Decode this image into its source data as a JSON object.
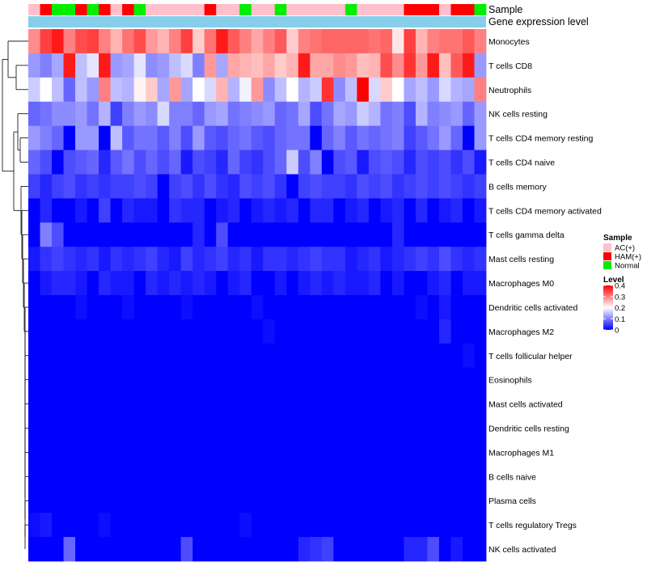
{
  "chart_data": {
    "type": "heatmap",
    "annotations": {
      "sample_label": "Sample",
      "expression_label": "Gene expression level"
    },
    "rows": [
      "Monocytes",
      "T cells CD8",
      "Neutrophils",
      "NK cells resting",
      "T cells CD4 memory resting",
      "T cells CD4 naive",
      "B cells memory",
      "T cells CD4 memory activated",
      "T cells gamma delta",
      "Mast cells resting",
      "Macrophages M0",
      "Dendritic cells activated",
      "Macrophages M2",
      "T cells follicular helper",
      "Eosinophils",
      "Mast cells activated",
      "Dendritic cells resting",
      "Macrophages M1",
      "B cells naive",
      "Plasma cells",
      "T cells regulatory  Tregs",
      "NK cells activated"
    ],
    "sample_groups": [
      "AC(+)",
      "HAM(+)",
      "Normal",
      "Normal",
      "HAM(+)",
      "Normal",
      "HAM(+)",
      "AC(+)",
      "HAM(+)",
      "Normal",
      "AC(+)",
      "AC(+)",
      "AC(+)",
      "AC(+)",
      "AC(+)",
      "HAM(+)",
      "AC(+)",
      "AC(+)",
      "Normal",
      "AC(+)",
      "AC(+)",
      "Normal",
      "AC(+)",
      "AC(+)",
      "AC(+)",
      "AC(+)",
      "AC(+)",
      "Normal",
      "AC(+)",
      "AC(+)",
      "AC(+)",
      "AC(+)",
      "HAM(+)",
      "HAM(+)",
      "HAM(+)",
      "AC(+)",
      "HAM(+)",
      "HAM(+)",
      "Normal"
    ],
    "values": [
      [
        0.29,
        0.35,
        0.38,
        0.3,
        0.34,
        0.35,
        0.3,
        0.26,
        0.31,
        0.34,
        0.28,
        0.26,
        0.3,
        0.35,
        0.24,
        0.31,
        0.38,
        0.33,
        0.3,
        0.27,
        0.3,
        0.33,
        0.24,
        0.3,
        0.31,
        0.32,
        0.32,
        0.32,
        0.32,
        0.31,
        0.32,
        0.22,
        0.35,
        0.26,
        0.3,
        0.31,
        0.31,
        0.33,
        0.3
      ],
      [
        0.12,
        0.1,
        0.13,
        0.38,
        0.15,
        0.18,
        0.38,
        0.12,
        0.13,
        0.18,
        0.11,
        0.12,
        0.15,
        0.17,
        0.1,
        0.28,
        0.13,
        0.27,
        0.26,
        0.25,
        0.27,
        0.24,
        0.26,
        0.38,
        0.27,
        0.27,
        0.29,
        0.28,
        0.25,
        0.26,
        0.34,
        0.29,
        0.36,
        0.28,
        0.38,
        0.25,
        0.33,
        0.38,
        0.12
      ],
      [
        0.16,
        0.2,
        0.15,
        0.08,
        0.15,
        0.12,
        0.3,
        0.15,
        0.14,
        0.21,
        0.24,
        0.13,
        0.28,
        0.13,
        0.2,
        0.17,
        0.26,
        0.14,
        0.19,
        0.28,
        0.11,
        0.15,
        0.2,
        0.14,
        0.16,
        0.36,
        0.11,
        0.15,
        0.4,
        0.17,
        0.24,
        0.2,
        0.13,
        0.15,
        0.12,
        0.17,
        0.14,
        0.13,
        0.3
      ],
      [
        0.08,
        0.09,
        0.11,
        0.11,
        0.12,
        0.09,
        0.14,
        0.05,
        0.1,
        0.12,
        0.11,
        0.17,
        0.1,
        0.1,
        0.08,
        0.12,
        0.13,
        0.09,
        0.1,
        0.11,
        0.12,
        0.08,
        0.09,
        0.13,
        0.06,
        0.09,
        0.13,
        0.12,
        0.16,
        0.14,
        0.09,
        0.1,
        0.06,
        0.14,
        0.1,
        0.11,
        0.12,
        0.08,
        0.12
      ],
      [
        0.12,
        0.1,
        0.08,
        0.0,
        0.12,
        0.12,
        0.0,
        0.15,
        0.07,
        0.09,
        0.09,
        0.07,
        0.1,
        0.06,
        0.12,
        0.07,
        0.06,
        0.08,
        0.09,
        0.07,
        0.06,
        0.08,
        0.09,
        0.09,
        0.0,
        0.08,
        0.1,
        0.07,
        0.09,
        0.08,
        0.09,
        0.1,
        0.05,
        0.07,
        0.09,
        0.12,
        0.08,
        0.0,
        0.12
      ],
      [
        0.08,
        0.06,
        0.0,
        0.06,
        0.07,
        0.08,
        0.03,
        0.07,
        0.09,
        0.06,
        0.08,
        0.06,
        0.08,
        0.02,
        0.06,
        0.05,
        0.03,
        0.08,
        0.05,
        0.04,
        0.06,
        0.08,
        0.16,
        0.06,
        0.1,
        0.0,
        0.06,
        0.07,
        0.02,
        0.06,
        0.07,
        0.06,
        0.03,
        0.06,
        0.05,
        0.06,
        0.04,
        0.06,
        0.02
      ],
      [
        0.05,
        0.03,
        0.05,
        0.06,
        0.04,
        0.05,
        0.04,
        0.05,
        0.05,
        0.06,
        0.05,
        0.0,
        0.05,
        0.06,
        0.04,
        0.06,
        0.04,
        0.03,
        0.06,
        0.05,
        0.06,
        0.04,
        0.0,
        0.05,
        0.06,
        0.05,
        0.05,
        0.04,
        0.06,
        0.05,
        0.06,
        0.04,
        0.05,
        0.06,
        0.05,
        0.06,
        0.05,
        0.04,
        0.05
      ],
      [
        0.0,
        0.03,
        0.0,
        0.0,
        0.02,
        0.0,
        0.05,
        0.0,
        0.03,
        0.02,
        0.02,
        0.0,
        0.04,
        0.03,
        0.03,
        0.0,
        0.02,
        0.03,
        0.0,
        0.02,
        0.03,
        0.02,
        0.03,
        0.0,
        0.03,
        0.03,
        0.0,
        0.02,
        0.03,
        0.0,
        0.02,
        0.03,
        0.0,
        0.03,
        0.0,
        0.02,
        0.03,
        0.0,
        0.02
      ],
      [
        0.0,
        0.1,
        0.06,
        0.0,
        0.0,
        0.0,
        0.0,
        0.0,
        0.0,
        0.0,
        0.0,
        0.0,
        0.0,
        0.0,
        0.03,
        0.0,
        0.06,
        0.0,
        0.0,
        0.0,
        0.0,
        0.0,
        0.0,
        0.0,
        0.0,
        0.0,
        0.0,
        0.0,
        0.0,
        0.0,
        0.0,
        0.03,
        0.0,
        0.0,
        0.0,
        0.0,
        0.0,
        0.0,
        0.0
      ],
      [
        0.02,
        0.04,
        0.05,
        0.04,
        0.03,
        0.04,
        0.02,
        0.04,
        0.03,
        0.04,
        0.05,
        0.03,
        0.02,
        0.05,
        0.03,
        0.04,
        0.05,
        0.03,
        0.04,
        0.02,
        0.04,
        0.04,
        0.03,
        0.04,
        0.05,
        0.04,
        0.04,
        0.02,
        0.03,
        0.04,
        0.02,
        0.03,
        0.04,
        0.05,
        0.04,
        0.06,
        0.04,
        0.03,
        0.04
      ],
      [
        0.0,
        0.02,
        0.03,
        0.03,
        0.02,
        0.0,
        0.03,
        0.02,
        0.02,
        0.0,
        0.03,
        0.02,
        0.03,
        0.02,
        0.03,
        0.02,
        0.0,
        0.02,
        0.03,
        0.0,
        0.0,
        0.02,
        0.0,
        0.02,
        0.03,
        0.02,
        0.03,
        0.02,
        0.02,
        0.03,
        0.0,
        0.02,
        0.0,
        0.0,
        0.02,
        0.03,
        0.0,
        0.02,
        0.02
      ],
      [
        0.0,
        0.0,
        0.0,
        0.0,
        0.01,
        0.0,
        0.0,
        0.0,
        0.01,
        0.0,
        0.0,
        0.0,
        0.0,
        0.01,
        0.0,
        0.0,
        0.0,
        0.0,
        0.0,
        0.01,
        0.0,
        0.0,
        0.0,
        0.0,
        0.0,
        0.0,
        0.0,
        0.0,
        0.0,
        0.0,
        0.0,
        0.0,
        0.0,
        0.01,
        0.0,
        0.02,
        0.0,
        0.0,
        0.0
      ],
      [
        0.0,
        0.0,
        0.0,
        0.0,
        0.0,
        0.0,
        0.0,
        0.0,
        0.0,
        0.0,
        0.0,
        0.0,
        0.0,
        0.0,
        0.0,
        0.0,
        0.0,
        0.0,
        0.0,
        0.0,
        0.01,
        0.0,
        0.0,
        0.0,
        0.0,
        0.0,
        0.0,
        0.0,
        0.0,
        0.0,
        0.0,
        0.0,
        0.0,
        0.0,
        0.0,
        0.03,
        0.0,
        0.0,
        0.0
      ],
      [
        0.0,
        0.0,
        0.0,
        0.0,
        0.0,
        0.0,
        0.0,
        0.0,
        0.0,
        0.0,
        0.0,
        0.0,
        0.0,
        0.0,
        0.0,
        0.0,
        0.0,
        0.0,
        0.0,
        0.0,
        0.0,
        0.0,
        0.0,
        0.0,
        0.0,
        0.0,
        0.0,
        0.0,
        0.0,
        0.0,
        0.0,
        0.0,
        0.0,
        0.0,
        0.0,
        0.0,
        0.0,
        0.01,
        0.0
      ],
      [
        0.0,
        0.0,
        0.0,
        0.0,
        0.0,
        0.0,
        0.0,
        0.0,
        0.0,
        0.0,
        0.0,
        0.0,
        0.0,
        0.0,
        0.0,
        0.0,
        0.0,
        0.0,
        0.0,
        0.0,
        0.0,
        0.0,
        0.0,
        0.0,
        0.0,
        0.0,
        0.0,
        0.0,
        0.0,
        0.0,
        0.0,
        0.0,
        0.0,
        0.0,
        0.0,
        0.0,
        0.0,
        0.0,
        0.0
      ],
      [
        0.0,
        0.0,
        0.0,
        0.0,
        0.0,
        0.0,
        0.0,
        0.0,
        0.0,
        0.0,
        0.0,
        0.0,
        0.0,
        0.0,
        0.0,
        0.0,
        0.0,
        0.0,
        0.0,
        0.0,
        0.0,
        0.0,
        0.0,
        0.0,
        0.0,
        0.0,
        0.0,
        0.0,
        0.0,
        0.0,
        0.0,
        0.0,
        0.0,
        0.0,
        0.0,
        0.0,
        0.0,
        0.0,
        0.0
      ],
      [
        0.0,
        0.0,
        0.0,
        0.0,
        0.0,
        0.0,
        0.0,
        0.0,
        0.0,
        0.0,
        0.0,
        0.0,
        0.0,
        0.0,
        0.0,
        0.0,
        0.0,
        0.0,
        0.0,
        0.0,
        0.0,
        0.0,
        0.0,
        0.0,
        0.0,
        0.0,
        0.0,
        0.0,
        0.0,
        0.0,
        0.0,
        0.0,
        0.0,
        0.0,
        0.0,
        0.0,
        0.0,
        0.0,
        0.0
      ],
      [
        0.0,
        0.0,
        0.0,
        0.0,
        0.0,
        0.0,
        0.0,
        0.0,
        0.0,
        0.0,
        0.0,
        0.0,
        0.0,
        0.0,
        0.0,
        0.0,
        0.0,
        0.0,
        0.0,
        0.0,
        0.0,
        0.0,
        0.0,
        0.0,
        0.0,
        0.0,
        0.0,
        0.0,
        0.0,
        0.0,
        0.0,
        0.0,
        0.0,
        0.0,
        0.0,
        0.0,
        0.0,
        0.0,
        0.0
      ],
      [
        0.0,
        0.0,
        0.0,
        0.0,
        0.0,
        0.0,
        0.0,
        0.0,
        0.0,
        0.0,
        0.0,
        0.0,
        0.0,
        0.0,
        0.0,
        0.0,
        0.0,
        0.0,
        0.0,
        0.0,
        0.0,
        0.0,
        0.0,
        0.0,
        0.0,
        0.0,
        0.0,
        0.0,
        0.0,
        0.0,
        0.0,
        0.0,
        0.0,
        0.0,
        0.0,
        0.0,
        0.0,
        0.0,
        0.0
      ],
      [
        0.0,
        0.0,
        0.0,
        0.0,
        0.0,
        0.0,
        0.0,
        0.0,
        0.0,
        0.0,
        0.0,
        0.0,
        0.0,
        0.0,
        0.0,
        0.0,
        0.0,
        0.0,
        0.0,
        0.0,
        0.0,
        0.0,
        0.0,
        0.0,
        0.0,
        0.0,
        0.0,
        0.0,
        0.0,
        0.0,
        0.0,
        0.0,
        0.0,
        0.0,
        0.0,
        0.0,
        0.0,
        0.0,
        0.0
      ],
      [
        0.01,
        0.02,
        0.0,
        0.0,
        0.0,
        0.0,
        0.01,
        0.0,
        0.0,
        0.0,
        0.0,
        0.0,
        0.0,
        0.0,
        0.0,
        0.0,
        0.0,
        0.0,
        0.01,
        0.0,
        0.0,
        0.0,
        0.0,
        0.0,
        0.0,
        0.0,
        0.0,
        0.0,
        0.0,
        0.0,
        0.0,
        0.0,
        0.0,
        0.0,
        0.0,
        0.0,
        0.0,
        0.0,
        0.0
      ],
      [
        0.0,
        0.0,
        0.0,
        0.08,
        0.0,
        0.0,
        0.0,
        0.0,
        0.0,
        0.0,
        0.0,
        0.0,
        0.0,
        0.06,
        0.0,
        0.0,
        0.0,
        0.0,
        0.0,
        0.0,
        0.0,
        0.0,
        0.0,
        0.03,
        0.04,
        0.05,
        0.0,
        0.0,
        0.0,
        0.0,
        0.0,
        0.0,
        0.03,
        0.03,
        0.06,
        0.0,
        0.02,
        0.0,
        0.0
      ]
    ],
    "legend": {
      "sample_title": "Sample",
      "groups": [
        "AC(+)",
        "HAM(+)",
        "Normal"
      ],
      "group_colors": [
        "#ffc0cb",
        "#ff0000",
        "#00ee00"
      ],
      "level_title": "Level",
      "level_ticks": [
        "0.4",
        "0.3",
        "0.2",
        "0.1",
        "0"
      ],
      "color_scale": [
        "#0000ff",
        "#ffffff",
        "#ff0000"
      ],
      "scale_range": [
        0,
        0.4
      ]
    },
    "expression_bar_color": "#87ceeb"
  }
}
